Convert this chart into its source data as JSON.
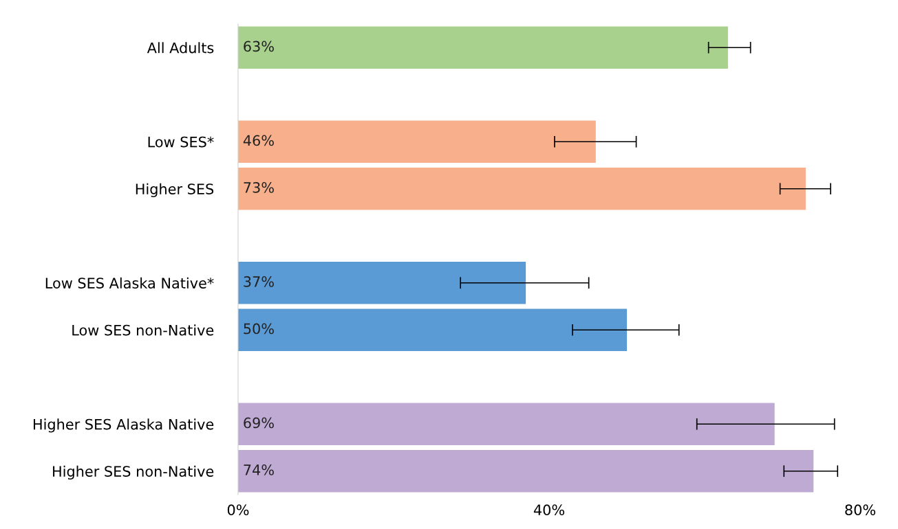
{
  "chart_data": {
    "type": "bar",
    "orientation": "horizontal",
    "categories": [
      "All Adults",
      null,
      "Low SES*",
      "Higher SES",
      null,
      "Low SES Alaska Native*",
      "Low SES non-Native",
      null,
      "Higher SES Alaska Native",
      "Higher SES non-Native"
    ],
    "values": [
      63,
      null,
      46,
      73,
      null,
      37,
      50,
      null,
      69,
      74
    ],
    "colors": [
      "#a9d18e",
      null,
      "#f8b08c",
      "#f8b08c",
      null,
      "#5b9bd5",
      "#5b9bd5",
      null,
      "#bfaad3",
      "#bfaad3"
    ],
    "errors": [
      [
        60.5,
        65.9
      ],
      null,
      [
        40.7,
        51.2
      ],
      [
        69.7,
        76.2
      ],
      null,
      [
        28.6,
        45.1
      ],
      [
        43.0,
        56.7
      ],
      null,
      [
        59.0,
        76.7
      ],
      [
        70.2,
        77.1
      ]
    ],
    "value_labels": [
      "63%",
      null,
      "46%",
      "73%",
      null,
      "37%",
      "50%",
      null,
      "69%",
      "74%"
    ],
    "xlim": [
      0,
      80
    ],
    "xticks": [
      {
        "value": 0,
        "label": "0%"
      },
      {
        "value": 40,
        "label": "40%"
      },
      {
        "value": 80,
        "label": "80%"
      }
    ],
    "grid": false,
    "legend": false
  }
}
